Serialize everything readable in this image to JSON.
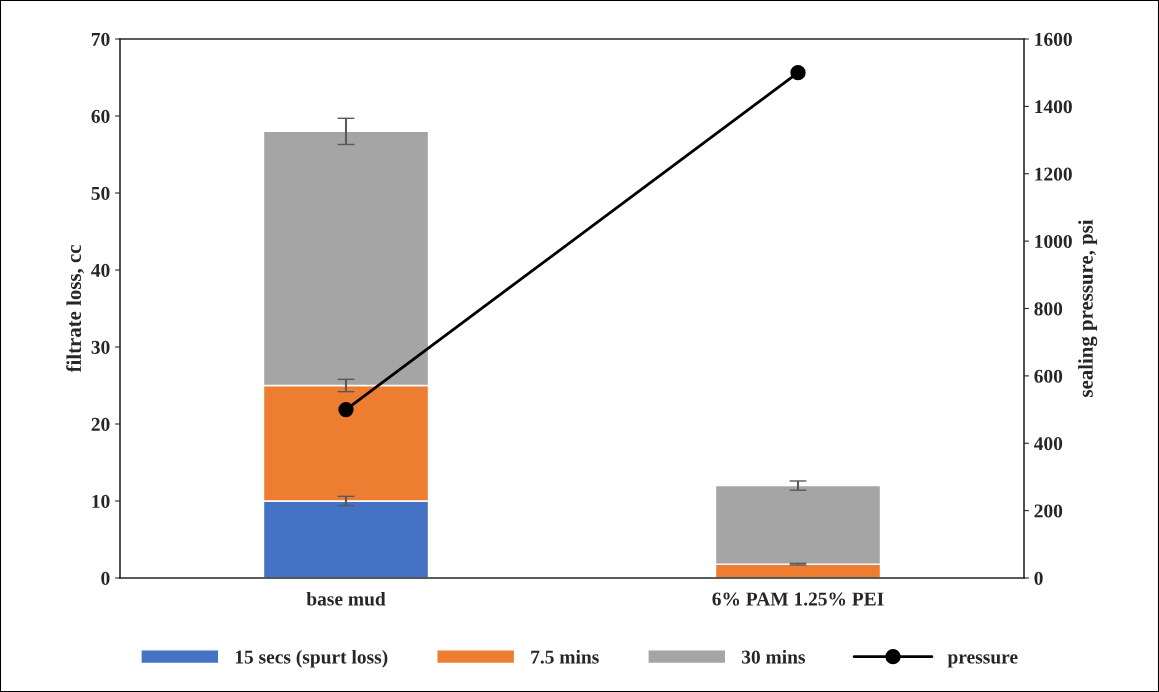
{
  "chart_data": {
    "type": "bar",
    "stacked": true,
    "categories": [
      "base mud",
      "6% PAM 1.25% PEI"
    ],
    "ylabel": "filtrate loss, cc",
    "y2label": "sealing pressure, psi",
    "ylim": [
      0,
      70
    ],
    "yticks": [
      0,
      10,
      20,
      30,
      40,
      50,
      60,
      70
    ],
    "y2lim": [
      0,
      1600
    ],
    "y2ticks": [
      0,
      200,
      400,
      600,
      800,
      1000,
      1200,
      1400,
      1600
    ],
    "series": [
      {
        "name": "15 secs (spurt loss)",
        "color": "#4472c4",
        "values": [
          10,
          0
        ],
        "errors": [
          0.6,
          null
        ]
      },
      {
        "name": "7.5 mins",
        "color": "#ed7d31",
        "values": [
          15,
          1.8
        ],
        "errors": [
          0.8,
          0.1
        ]
      },
      {
        "name": "30 mins",
        "color": "#a5a5a5",
        "values": [
          33,
          10.2
        ],
        "errors": [
          1.7,
          0.6
        ]
      },
      {
        "name": "pressure",
        "type": "line",
        "axis": "y2",
        "color": "#000000",
        "marker": "circle",
        "values": [
          500,
          1500
        ]
      }
    ],
    "legend": "bottom",
    "grid": false
  }
}
